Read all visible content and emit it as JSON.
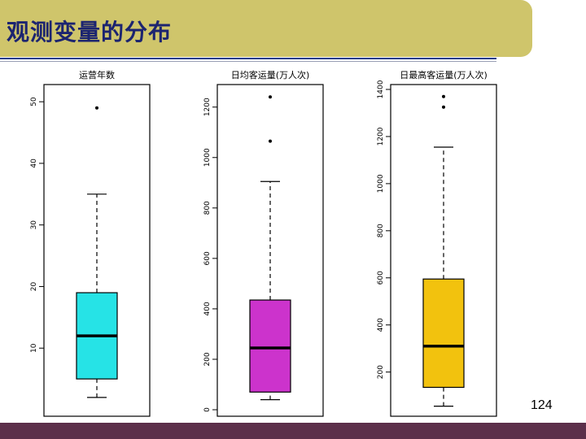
{
  "slide": {
    "title": "观测变量的分布",
    "page_number": "124"
  },
  "colors": {
    "title_bar": "#cfc56b",
    "title_text": "#1c2470",
    "footer": "#5c2f4a"
  },
  "chart_data": [
    {
      "type": "box",
      "title": "运营年数",
      "ylim": [
        0,
        52
      ],
      "ticks": [
        10,
        20,
        30,
        40,
        50
      ],
      "fill": "#26e3e6",
      "box": {
        "whisker_low": 2,
        "q1": 5,
        "median": 12,
        "q3": 19,
        "whisker_high": 35
      },
      "outliers": [
        49
      ]
    },
    {
      "type": "box",
      "title": "日均客运量(万人次)",
      "ylim": [
        0,
        1270
      ],
      "ticks": [
        0,
        200,
        400,
        600,
        800,
        1000,
        1200
      ],
      "fill": "#cc33cc",
      "box": {
        "whisker_low": 40,
        "q1": 70,
        "median": 245,
        "q3": 435,
        "whisker_high": 905
      },
      "outliers": [
        1065,
        1240
      ]
    },
    {
      "type": "box",
      "title": "日最高客运量(万人次)",
      "ylim": [
        40,
        1400
      ],
      "ticks": [
        200,
        400,
        600,
        800,
        1000,
        1200,
        1400
      ],
      "fill": "#f2c20e",
      "box": {
        "whisker_low": 55,
        "q1": 135,
        "median": 310,
        "q3": 595,
        "whisker_high": 1155
      },
      "outliers": [
        1325,
        1370
      ]
    }
  ]
}
